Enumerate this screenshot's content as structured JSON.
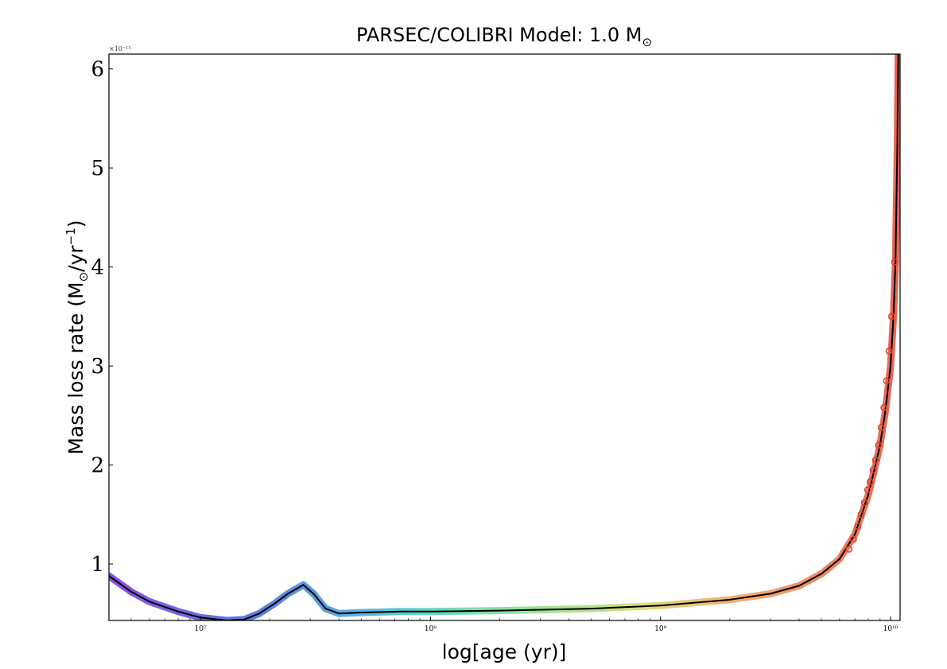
{
  "chart_data": {
    "type": "line",
    "title": "PARSEC/COLIBRI Model: 1.0 M",
    "title_sub": "⊙",
    "xlabel": "log[age (yr)]",
    "ylabel_main": "Mass loss rate (M",
    "ylabel_sub": "⊙",
    "ylabel_mid": "/yr",
    "ylabel_sup": "−1",
    "ylabel_end": ")",
    "x_scale": "log",
    "xlim": [
      4000000.0,
      11000000000.0
    ],
    "ylim": [
      0.43,
      6.15
    ],
    "y_multiplier_label": "×10⁻¹³",
    "x_ticks": [
      {
        "value": 10000000.0,
        "label": "10⁷"
      },
      {
        "value": 100000000.0,
        "label": "10⁸"
      },
      {
        "value": 1000000000.0,
        "label": "10⁹"
      },
      {
        "value": 10000000000.0,
        "label": "10¹⁰"
      }
    ],
    "y_ticks": [
      {
        "value": 1,
        "label": "1"
      },
      {
        "value": 2,
        "label": "2"
      },
      {
        "value": 3,
        "label": "3"
      },
      {
        "value": 4,
        "label": "4"
      },
      {
        "value": 5,
        "label": "5"
      },
      {
        "value": 6,
        "label": "6"
      }
    ],
    "grid": false,
    "line_color": "#000000",
    "series": [
      {
        "style": "line",
        "color": "#000000",
        "x": [
          4000000.0,
          5000000.0,
          6000000.0,
          8000000.0,
          10000000.0,
          13000000.0,
          15500000.0,
          18000000.0,
          21000000.0,
          24000000.0,
          28000000.0,
          31000000.0,
          35000000.0,
          40000000.0,
          50000000.0,
          75000000.0,
          100000000.0,
          200000000.0,
          500000000.0,
          1000000000.0,
          2000000000.0,
          3000000000.0,
          4000000000.0,
          5000000000.0,
          6000000000.0,
          7000000000.0,
          8000000000.0,
          8500000000.0,
          9000000000.0,
          9500000000.0,
          10000000000.0,
          10300000000.0,
          10500000000.0,
          10700000000.0,
          10800000000.0
        ],
        "y": [
          0.88,
          0.72,
          0.62,
          0.52,
          0.46,
          0.43,
          0.44,
          0.5,
          0.6,
          0.7,
          0.79,
          0.7,
          0.55,
          0.5,
          0.51,
          0.52,
          0.52,
          0.53,
          0.55,
          0.58,
          0.64,
          0.7,
          0.78,
          0.9,
          1.05,
          1.3,
          1.7,
          1.95,
          2.2,
          2.55,
          3.0,
          3.5,
          4.05,
          5.2,
          6.15
        ]
      },
      {
        "style": "markers",
        "color": "#dd4433",
        "x": [
          6600000000.0,
          6900000000.0,
          7200000000.0,
          7450000000.0,
          7700000000.0,
          7950000000.0,
          8150000000.0,
          8400000000.0,
          8600000000.0,
          8850000000.0,
          9100000000.0,
          9350000000.0,
          9600000000.0,
          9850000000.0,
          10100000000.0,
          10400000000.0
        ],
        "y": [
          1.15,
          1.25,
          1.38,
          1.5,
          1.62,
          1.75,
          1.83,
          1.95,
          2.05,
          2.2,
          2.38,
          2.58,
          2.85,
          3.15,
          3.5,
          4.05
        ]
      }
    ]
  }
}
